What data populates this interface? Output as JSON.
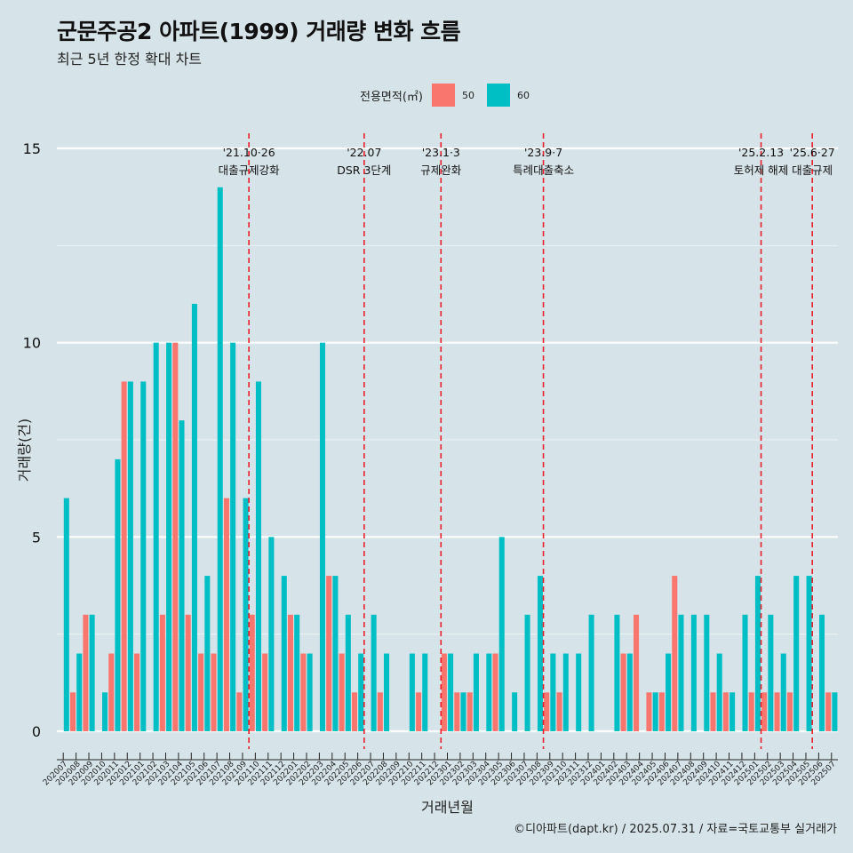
{
  "title": "군문주공2 아파트(1999) 거래량 변화 흐름",
  "subtitle": "최근 5년 한정 확대 차트",
  "caption": "©디아파트(dapt.kr) / 2025.07.31 / 자료=국토교통부 실거래가",
  "legend": {
    "title": "전용면적(㎡)",
    "items": [
      {
        "label": "50",
        "color": "#f8766d"
      },
      {
        "label": "60",
        "color": "#00bfc4"
      }
    ]
  },
  "chart_data": {
    "type": "bar",
    "title": "군문주공2 아파트(1999) 거래량 변화 흐름",
    "xlabel": "거래년월",
    "ylabel": "거래량(건)",
    "ylim": [
      0,
      15
    ],
    "yticks": [
      0,
      5,
      10,
      15
    ],
    "categories": [
      "202007",
      "202008",
      "202009",
      "202010",
      "202011",
      "202012",
      "202101",
      "202102",
      "202103",
      "202104",
      "202105",
      "202106",
      "202107",
      "202108",
      "202109",
      "202110",
      "202111",
      "202112",
      "202201",
      "202202",
      "202203",
      "202204",
      "202205",
      "202206",
      "202207",
      "202208",
      "202209",
      "202210",
      "202211",
      "202212",
      "202301",
      "202302",
      "202303",
      "202304",
      "202305",
      "202306",
      "202307",
      "202308",
      "202309",
      "202310",
      "202311",
      "202312",
      "202401",
      "202402",
      "202403",
      "202404",
      "202405",
      "202406",
      "202407",
      "202408",
      "202409",
      "202410",
      "202411",
      "202412",
      "202501",
      "202502",
      "202503",
      "202504",
      "202505",
      "202506",
      "202507"
    ],
    "series": [
      {
        "name": "50",
        "color": "#f8766d",
        "values": [
          0,
          1,
          3,
          0,
          2,
          9,
          2,
          0,
          3,
          10,
          3,
          2,
          2,
          6,
          1,
          3,
          2,
          0,
          3,
          2,
          0,
          4,
          2,
          1,
          0,
          1,
          0,
          0,
          1,
          0,
          2,
          1,
          1,
          0,
          2,
          0,
          0,
          0,
          1,
          1,
          0,
          0,
          0,
          0,
          2,
          3,
          1,
          1,
          4,
          0,
          0,
          1,
          1,
          0,
          1,
          1,
          1,
          1,
          0,
          0,
          1
        ]
      },
      {
        "name": "60",
        "color": "#00bfc4",
        "values": [
          6,
          2,
          3,
          1,
          7,
          9,
          9,
          10,
          10,
          8,
          11,
          4,
          14,
          10,
          6,
          9,
          5,
          4,
          3,
          2,
          10,
          4,
          3,
          2,
          3,
          2,
          0,
          2,
          2,
          0,
          2,
          1,
          2,
          2,
          5,
          1,
          3,
          4,
          2,
          2,
          2,
          3,
          0,
          3,
          2,
          0,
          1,
          2,
          3,
          3,
          3,
          2,
          1,
          3,
          4,
          3,
          2,
          4,
          4,
          3,
          1
        ]
      }
    ],
    "annotations": [
      {
        "date": "'21.10·26",
        "label": "대출규제강화",
        "category": "202110"
      },
      {
        "date": "'22.07",
        "label": "DSR 3단계",
        "category": "202207"
      },
      {
        "date": "'23.1·3",
        "label": "규제완화",
        "category": "202301"
      },
      {
        "date": "'23.9·7",
        "label": "특례대출축소",
        "category": "202309"
      },
      {
        "date": "'25.2.13",
        "label": "토허제 해제",
        "category": "202502"
      },
      {
        "date": "'25.6·27",
        "label": "대출규제",
        "category": "202506"
      }
    ]
  }
}
